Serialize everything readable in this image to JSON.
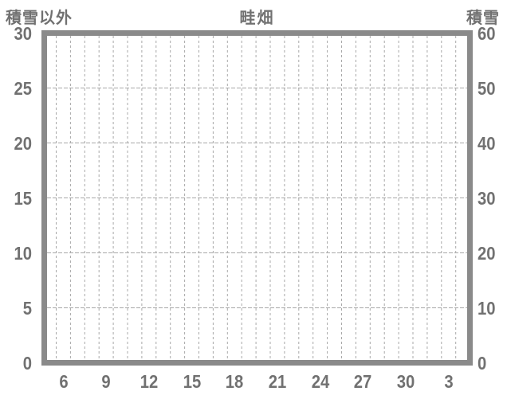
{
  "chart_data": {
    "type": "line",
    "title": "畦畑",
    "left_axis": {
      "label": "積雪以外",
      "ticks": [
        "30",
        "25",
        "20",
        "15",
        "10",
        "5",
        "0"
      ],
      "range": [
        0,
        30
      ]
    },
    "right_axis": {
      "label": "積雪",
      "ticks": [
        "60",
        "50",
        "40",
        "30",
        "20",
        "10",
        "0"
      ],
      "range": [
        0,
        60
      ]
    },
    "x_axis": {
      "ticks": [
        "6",
        "9",
        "12",
        "15",
        "18",
        "21",
        "24",
        "27",
        "30",
        "3"
      ]
    },
    "series": [],
    "grid": true,
    "legend_position": "none"
  },
  "colors": {
    "frame": "#8a8a8a",
    "grid": "#a8a8a8",
    "text": "#717171",
    "background": "#ffffff"
  }
}
